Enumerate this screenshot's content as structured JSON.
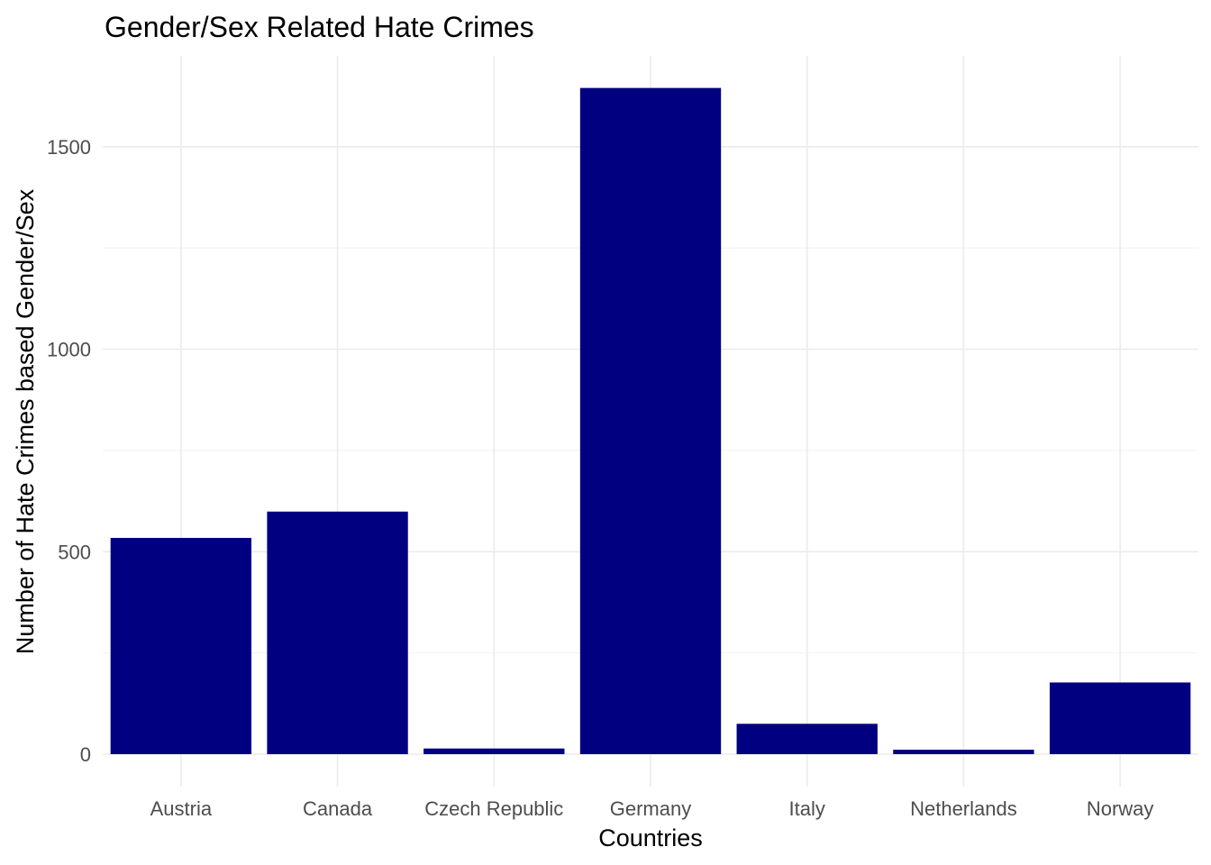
{
  "chart_data": {
    "type": "bar",
    "title": "Gender/Sex Related Hate Crimes",
    "xlabel": "Countries",
    "ylabel": "Number of Hate Crimes based Gender/Sex",
    "categories": [
      "Austria",
      "Canada",
      "Czech Republic",
      "Germany",
      "Italy",
      "Netherlands",
      "Norway"
    ],
    "values": [
      534,
      599,
      14,
      1645,
      75,
      11,
      177
    ],
    "yticks": [
      0,
      500,
      1000,
      1500
    ],
    "ylim": [
      0,
      1720
    ],
    "bar_color": "#000080",
    "grid": true,
    "legend": "none"
  }
}
